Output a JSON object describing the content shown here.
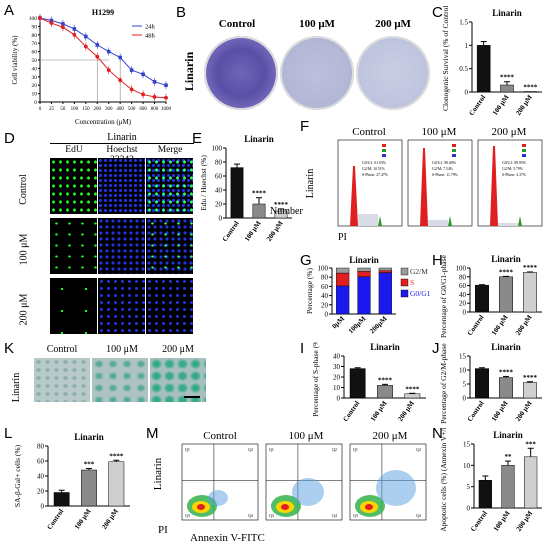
{
  "panels": {
    "A": {
      "label": "A",
      "title": "H1299",
      "ylabel": "Cell viability (%)",
      "xlabel": "Concentration (μM)"
    },
    "B": {
      "label": "B",
      "cols": [
        "Control",
        "100 μM",
        "200 μM"
      ],
      "row": "Linarin"
    },
    "C": {
      "label": "C",
      "title": "Linarin",
      "ylabel": "Clonogenic Survival (% of Control)"
    },
    "D": {
      "label": "D",
      "top": "Linarin",
      "cols": [
        "EdU",
        "Hoechst 33342",
        "Merge"
      ],
      "rows": [
        "Control",
        "100 μM",
        "200 μM"
      ]
    },
    "E": {
      "label": "E",
      "title": "Linarin",
      "ylabel": "Edu / Hoechst (%)"
    },
    "F": {
      "label": "F",
      "cols": [
        "Control",
        "100 μM",
        "200 μM"
      ],
      "row": "Linarin",
      "xlab": "PI",
      "ylab": "Number",
      "stats": [
        [
          "G0/G1: 61.03%",
          "G2/M: 10.51%",
          "S-Phase: 27.47%"
        ],
        [
          "G0/G1: 80.68%",
          "G2/M: 7.54%",
          "S-Phase: 11.79%"
        ],
        [
          "G0/G1: 89.85%",
          "G2/M: 5.79%",
          "S-Phase: 4.37%"
        ]
      ]
    },
    "G": {
      "label": "G",
      "title": "Linarin",
      "ylabel": "Percentage (%)"
    },
    "H": {
      "label": "H",
      "title": "Linarin",
      "ylabel": "Percentage of G0/G1-phase (%)"
    },
    "I": {
      "label": "I",
      "title": "Linarin",
      "ylabel": "Percentage of S-phase (%)"
    },
    "J": {
      "label": "J",
      "title": "Linarin",
      "ylabel": "Percentage of G2/M-phase (%)"
    },
    "K": {
      "label": "K",
      "cols": [
        "Control",
        "100 μM",
        "200 μM"
      ],
      "row": "Linarin"
    },
    "L": {
      "label": "L",
      "title": "Linarin",
      "ylabel": "SA-β-Gal+ cells (%)"
    },
    "M": {
      "label": "M",
      "cols": [
        "Control",
        "100 μM",
        "200 μM"
      ],
      "row": "Linarin",
      "xlab": "Annexin V-FITC",
      "ylab": "PI",
      "quads": [
        [
          "Q1",
          "Q2",
          "Q3",
          "Q4"
        ],
        [
          "Q1",
          "Q2",
          "Q3",
          "Q4"
        ],
        [
          "Q1",
          "Q2",
          "Q3",
          "Q4"
        ]
      ]
    },
    "N": {
      "label": "N",
      "title": "Linarin",
      "ylabel": "Apoptotic cells (%) (Annexin V+/PI)"
    }
  },
  "colors": {
    "bar_ctrl": "#111111",
    "bar_100": "#8a8a8a",
    "bar_200": "#cfcfcf",
    "line24": "#3344cc",
    "line48": "#e02020",
    "g2m": "#9a9a9a",
    "s": "#e02020",
    "g0g1": "#1a1aee"
  },
  "chart_data": [
    {
      "id": "A",
      "type": "line",
      "title": "H1299",
      "xlabel": "Concentration (μM)",
      "ylabel": "Cell viability (%)",
      "x_ticks": [
        "0",
        "25",
        "50",
        "100",
        "150",
        "200",
        "300",
        "400",
        "500",
        "600",
        "800",
        "1000"
      ],
      "ylim": [
        0,
        100
      ],
      "y_ticks": [
        0,
        10,
        20,
        30,
        40,
        50,
        60,
        70,
        80,
        90,
        100
      ],
      "series": [
        {
          "name": "24h",
          "values": [
            100,
            97,
            93,
            87,
            78,
            68,
            60,
            53,
            38,
            33,
            24,
            20
          ]
        },
        {
          "name": "48h",
          "values": [
            100,
            94,
            89,
            80,
            66,
            54,
            38,
            26,
            15,
            9,
            6,
            5
          ]
        }
      ]
    },
    {
      "id": "C",
      "type": "bar",
      "title": "Linarin",
      "ylabel": "Clonogenic Survival (% of Control)",
      "categories": [
        "Control",
        "100 μM",
        "200 μM"
      ],
      "values": [
        1.0,
        0.15,
        0.01
      ],
      "errors": [
        0.08,
        0.07,
        0.0
      ],
      "ylim": [
        0,
        1.5
      ],
      "y_ticks": [
        0,
        0.5,
        1.0,
        1.5
      ],
      "sig": [
        "",
        "****",
        "****"
      ]
    },
    {
      "id": "E",
      "type": "bar",
      "title": "Linarin",
      "ylabel": "Edu / Hoechst (%)",
      "categories": [
        "Control",
        "100 μM",
        "200 μM"
      ],
      "values": [
        72,
        20,
        10
      ],
      "errors": [
        5,
        9,
        3
      ],
      "ylim": [
        0,
        100
      ],
      "y_ticks": [
        0,
        20,
        40,
        60,
        80,
        100
      ],
      "sig": [
        "",
        "****",
        "****"
      ]
    },
    {
      "id": "G",
      "type": "bar",
      "title": "Linarin",
      "ylabel": "Percentage (%)",
      "categories": [
        "0μM",
        "100μM",
        "200μM"
      ],
      "series": [
        {
          "name": "G0/G1",
          "values": [
            61,
            81,
            90
          ]
        },
        {
          "name": "S",
          "values": [
            28,
            12,
            4
          ]
        },
        {
          "name": "G2/M",
          "values": [
            11,
            7,
            6
          ]
        }
      ],
      "ylim": [
        0,
        100
      ],
      "y_ticks": [
        0,
        20,
        40,
        60,
        80,
        100
      ]
    },
    {
      "id": "H",
      "type": "bar",
      "title": "Linarin",
      "ylabel": "Percentage of G0/G1-phase (%)",
      "categories": [
        "Control",
        "100 μM",
        "200 μM"
      ],
      "values": [
        61,
        80,
        90
      ],
      "errors": [
        1,
        1,
        1
      ],
      "ylim": [
        0,
        100
      ],
      "y_ticks": [
        0,
        20,
        40,
        60,
        80,
        100
      ],
      "sig": [
        "",
        "****",
        "****"
      ]
    },
    {
      "id": "I",
      "type": "bar",
      "title": "Linarin",
      "ylabel": "Percentage of S-phase (%)",
      "categories": [
        "Control",
        "100 μM",
        "200 μM"
      ],
      "values": [
        28,
        12,
        4
      ],
      "errors": [
        0.8,
        1,
        0.5
      ],
      "ylim": [
        0,
        40
      ],
      "y_ticks": [
        0,
        10,
        20,
        30,
        40
      ],
      "sig": [
        "",
        "****",
        "****"
      ]
    },
    {
      "id": "J",
      "type": "bar",
      "title": "Linarin",
      "ylabel": "Percentage of G2/M-phase (%)",
      "categories": [
        "Control",
        "100 μM",
        "200 μM"
      ],
      "values": [
        10.5,
        7.3,
        5.5
      ],
      "errors": [
        0.3,
        0.4,
        0.3
      ],
      "ylim": [
        0,
        15
      ],
      "y_ticks": [
        0,
        5,
        10,
        15
      ],
      "sig": [
        "",
        "****",
        "****"
      ]
    },
    {
      "id": "L",
      "type": "bar",
      "title": "Linarin",
      "ylabel": "SA-β-Gal+ cells (%)",
      "categories": [
        "Control",
        "100 μM",
        "200 μM"
      ],
      "values": [
        18,
        48,
        59
      ],
      "errors": [
        3,
        2,
        2
      ],
      "ylim": [
        0,
        80
      ],
      "y_ticks": [
        0,
        20,
        40,
        60,
        80
      ],
      "sig": [
        "",
        "***",
        "****"
      ]
    },
    {
      "id": "N",
      "type": "bar",
      "title": "Linarin",
      "ylabel": "Apoptotic cells (%) (Annexin V+/PI)",
      "categories": [
        "Control",
        "100 μM",
        "200 μM"
      ],
      "values": [
        6.5,
        10,
        12
      ],
      "errors": [
        1,
        1,
        2
      ],
      "ylim": [
        0,
        15
      ],
      "y_ticks": [
        0,
        5,
        10,
        15
      ],
      "sig": [
        "",
        "**",
        "***"
      ]
    }
  ]
}
